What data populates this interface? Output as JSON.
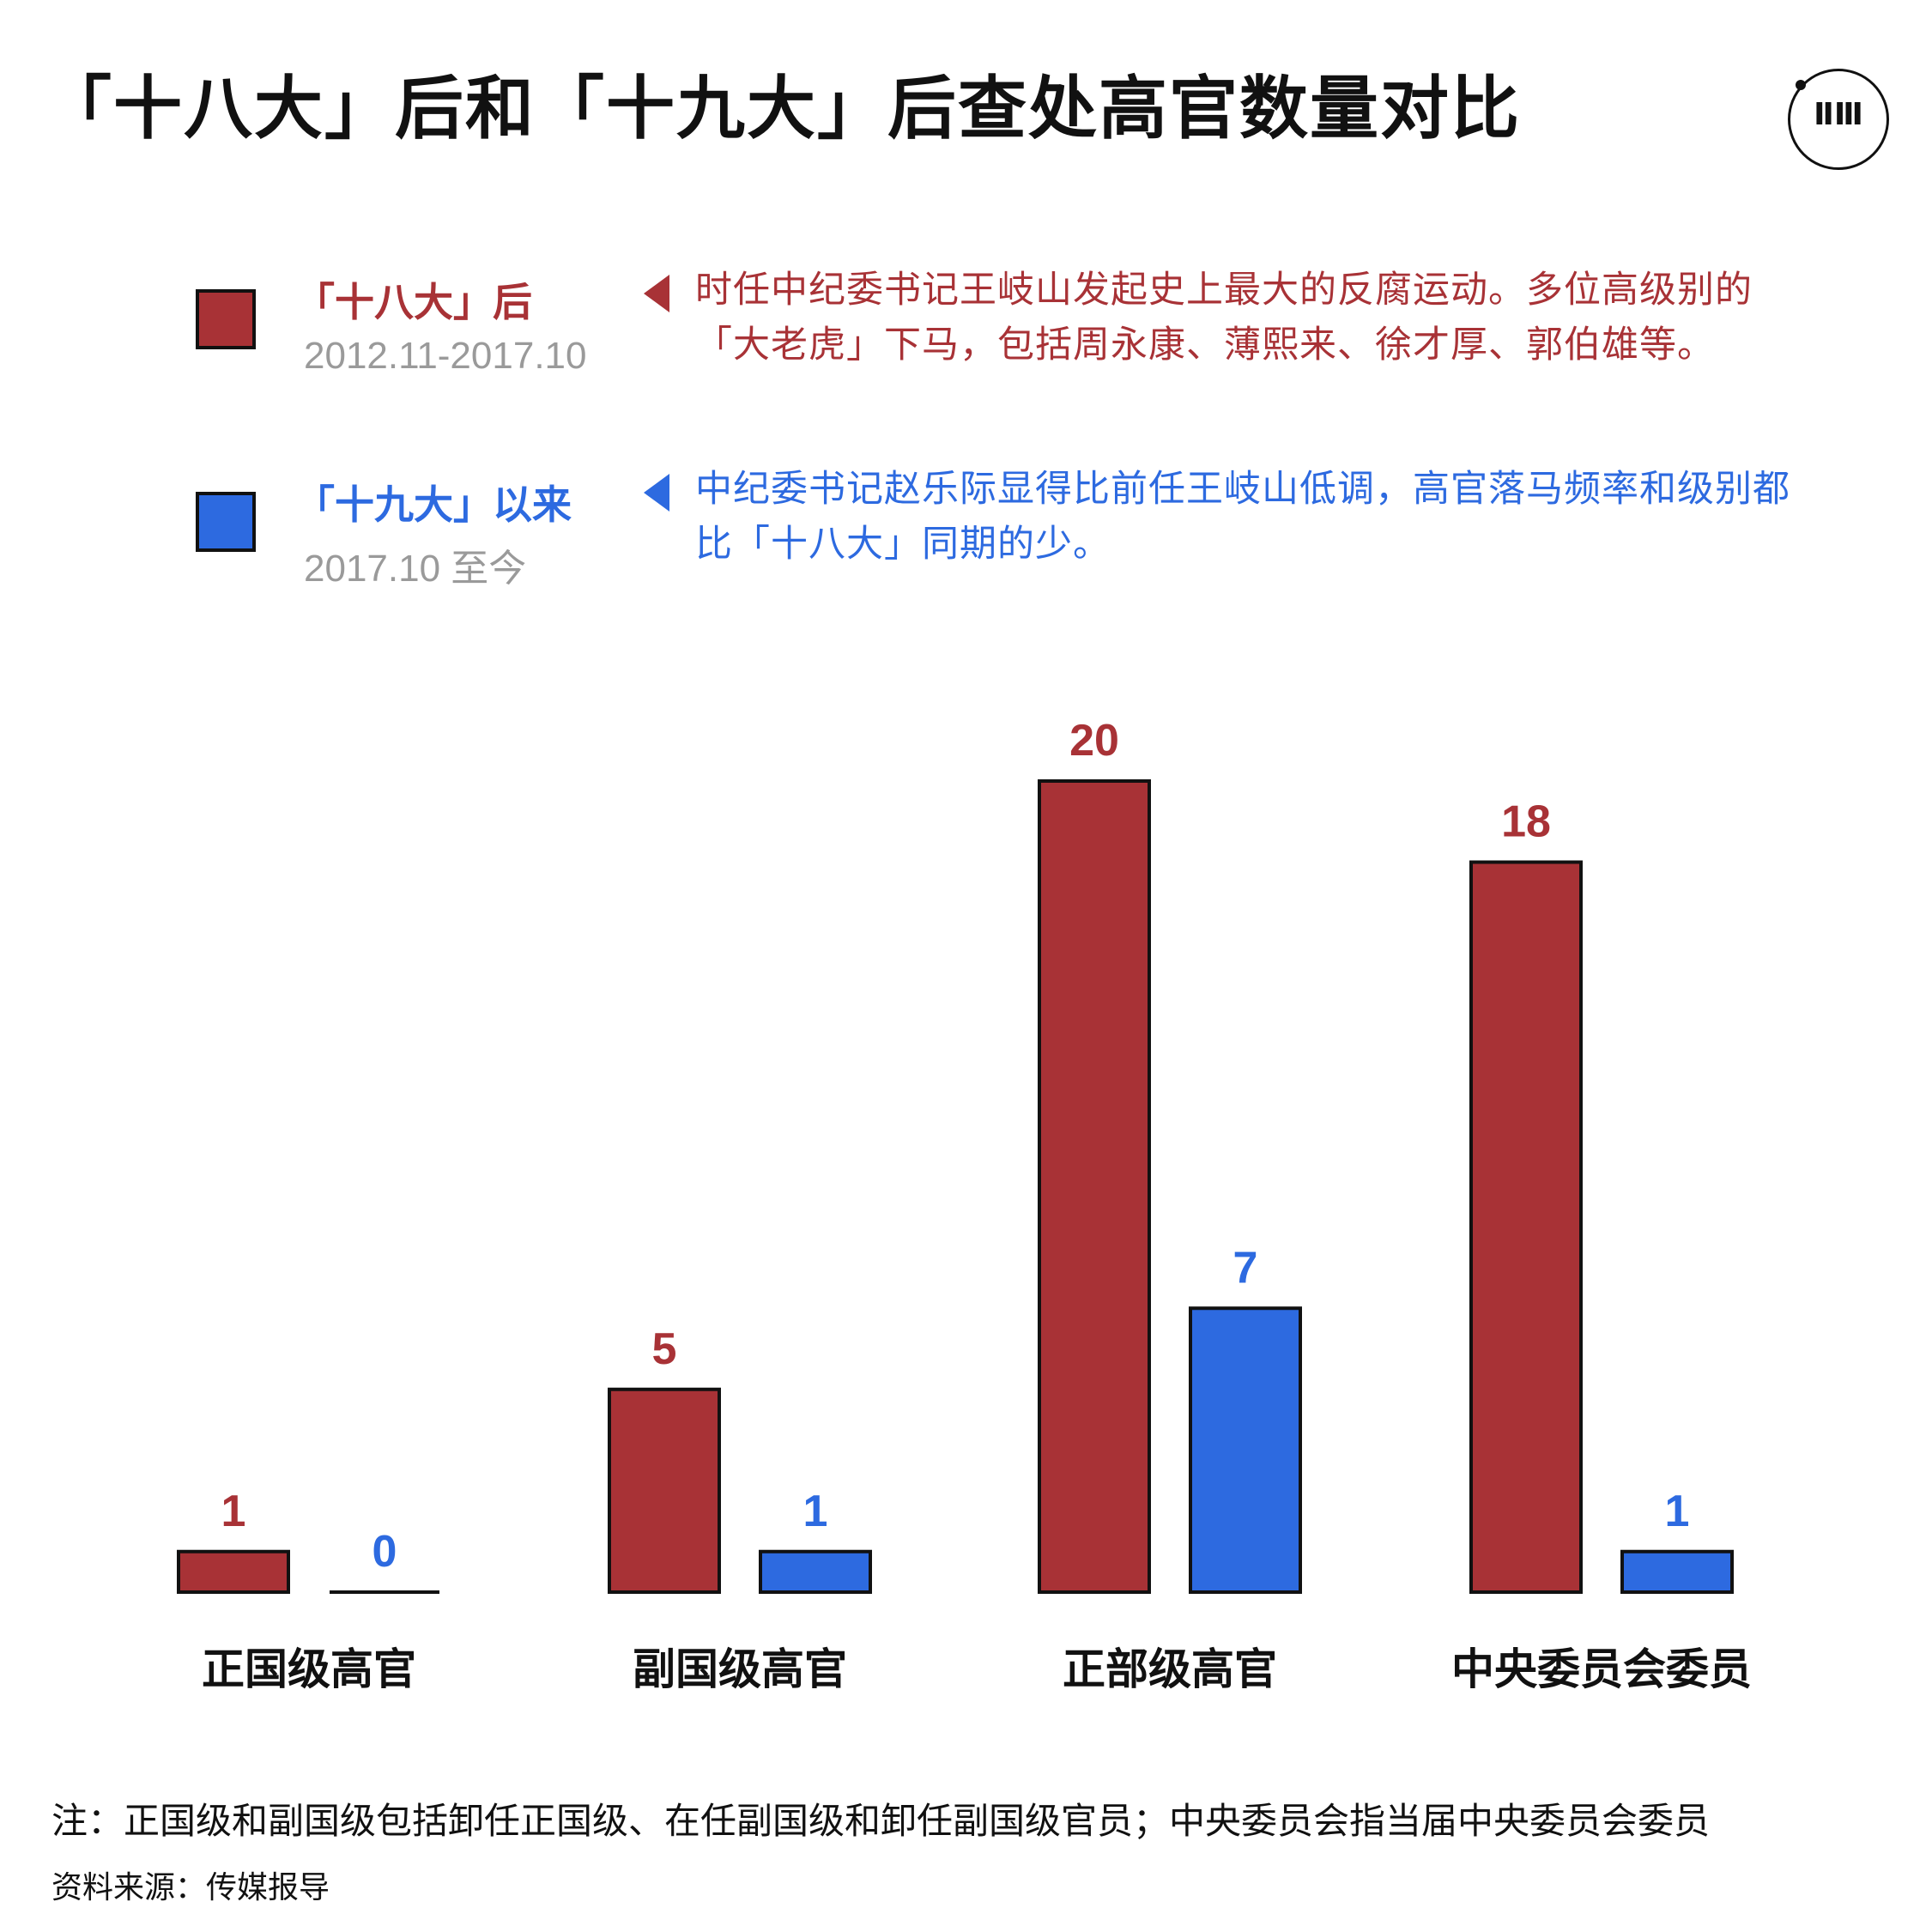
{
  "title": "「十八大」后和「十九大」后查处高官数量对比",
  "logo": {
    "text": "ⅡⅢ",
    "icon": "theinitium-logo"
  },
  "legend": [
    {
      "label": "「十八大」后",
      "date": "2012.11-2017.10",
      "color": "#a83236",
      "description": "时任中纪委书记王岐山发起史上最大的反腐运动。多位高级别的「大老虎」下马，包括周永康、薄熙来、徐才厚、郭伯雄等。"
    },
    {
      "label": "「十九大」以来",
      "date": "2017.10 至今",
      "color": "#2d6ae0",
      "description": "中纪委书记赵乐际显得比前任王岐山低调，高官落马频率和级别都比「十八大」同期的少。"
    }
  ],
  "chart_data": {
    "type": "bar",
    "categories": [
      "正国级高官",
      "副国级高官",
      "正部级高官",
      "中央委员会委员"
    ],
    "series": [
      {
        "name": "「十八大」后",
        "color": "#a83236",
        "values": [
          1,
          5,
          20,
          18
        ]
      },
      {
        "name": "「十九大」以来",
        "color": "#2d6ae0",
        "values": [
          0,
          1,
          7,
          1
        ]
      }
    ],
    "ylim": [
      0,
      20
    ],
    "grid": false,
    "legend_position": "top-left",
    "xlabel": "",
    "ylabel": ""
  },
  "footer": {
    "note": "注：正国级和副国级包括卸任正国级、在任副国级和卸任副国级官员；中央委员会指当届中央委员会委员",
    "source": "资料来源：传媒报导"
  }
}
